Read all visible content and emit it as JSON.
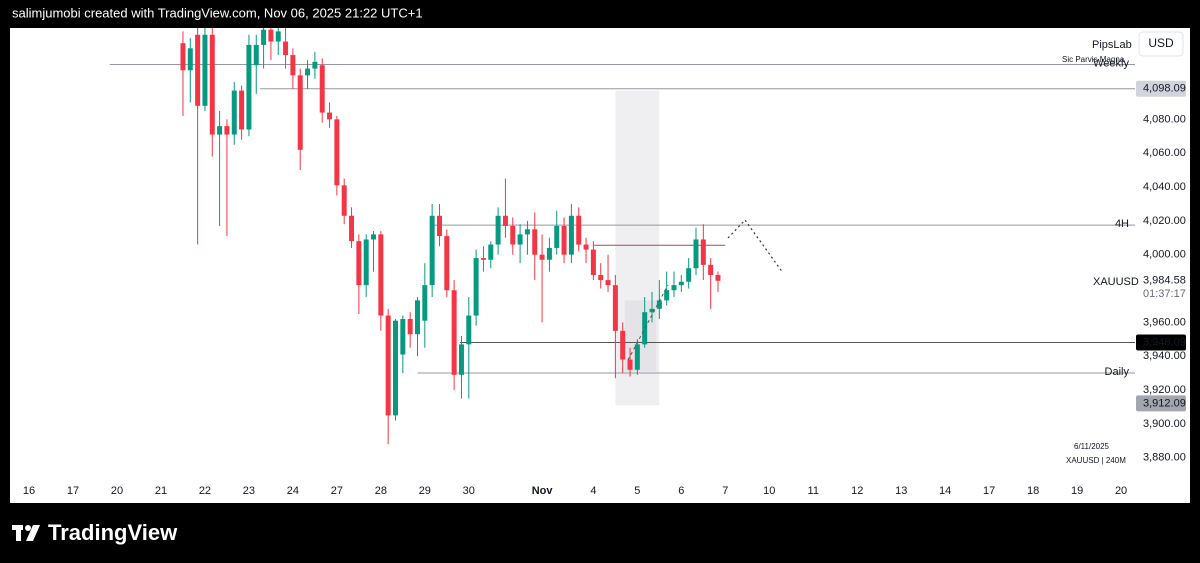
{
  "header": "salimjumobi created with TradingView.com, Nov 06, 2025 21:22 UTC+1",
  "brand": "TradingView",
  "chart_data": {
    "type": "candlestick",
    "symbol": "XAUUSD",
    "countdown": "01:37:17",
    "currency": "USD",
    "watermark": {
      "title": "PipsLab",
      "subtitle": "Sic Parvis Magna"
    },
    "footnote": [
      "6/11/2025",
      "XAUUSD | 240M"
    ],
    "up_color": "#089981",
    "down_color": "#f23645",
    "open": [
      4125,
      4109,
      4130,
      4088,
      4130,
      4071,
      4076,
      4071,
      4097,
      4074,
      4112,
      4124,
      4133,
      4126,
      4126,
      4118,
      4106,
      4106,
      4110,
      4112,
      4084,
      4080,
      4041,
      4023,
      4008,
      3982,
      4009,
      4012,
      3964,
      3905,
      3941,
      3962,
      3953,
      3961,
      3982,
      4023,
      4011,
      3979,
      3929,
      3947,
      3964,
      3998,
      3997,
      4006,
      4023,
      4017,
      4006,
      4012,
      4015,
      4000,
      3997,
      4004,
      4017,
      4000,
      4023,
      4006,
      4003,
      3988,
      3985,
      3982,
      3955,
      3938,
      3932,
      3947,
      3966,
      3968,
      3973,
      3979,
      3982,
      3984,
      3992,
      4009,
      3994,
      3988
    ],
    "high": [
      4132,
      4128,
      4134,
      4134,
      4134,
      4085,
      4080,
      4102,
      4100,
      4130,
      4130,
      4134,
      4134,
      4134,
      4134,
      4122,
      4110,
      4115,
      4120,
      4116,
      4090,
      4082,
      4045,
      4028,
      4012,
      4012,
      4014,
      4014,
      3968,
      3962,
      3964,
      3966,
      3975,
      3995,
      4030,
      4030,
      4015,
      3985,
      3952,
      3975,
      4003,
      4005,
      4008,
      4028,
      4045,
      4022,
      4018,
      4020,
      4025,
      4012,
      4010,
      4026,
      4022,
      4030,
      4028,
      4010,
      4008,
      3995,
      4000,
      3988,
      3960,
      3945,
      3950,
      3975,
      3978,
      3985,
      3990,
      3990,
      3988,
      3998,
      4016,
      4018,
      3998,
      3990
    ],
    "low": [
      4082,
      4090,
      4006,
      4085,
      4058,
      4017,
      4011,
      4065,
      4068,
      4070,
      4095,
      4110,
      4115,
      4118,
      4110,
      4098,
      4050,
      4098,
      4104,
      4078,
      4075,
      4035,
      4018,
      4004,
      3965,
      3975,
      3990,
      3955,
      3888,
      3902,
      3930,
      3945,
      3940,
      3945,
      3975,
      4005,
      3975,
      3920,
      3915,
      3915,
      3958,
      3990,
      3992,
      4000,
      4010,
      4000,
      3995,
      4000,
      3985,
      3960,
      3990,
      4000,
      3995,
      3995,
      4002,
      3995,
      3985,
      3980,
      3978,
      3927,
      3930,
      3928,
      3929,
      3945,
      3960,
      3962,
      3970,
      3975,
      3978,
      3980,
      3988,
      3985,
      3968,
      3978
    ],
    "close": [
      4109,
      4122,
      4088,
      4130,
      4071,
      4076,
      4071,
      4097,
      4074,
      4124,
      4124,
      4133,
      4126,
      4132,
      4118,
      4106,
      4062,
      4110,
      4114,
      4084,
      4080,
      4041,
      4023,
      4008,
      3982,
      4009,
      4012,
      3964,
      3905,
      3961,
      3962,
      3953,
      3973,
      3982,
      4023,
      4011,
      3979,
      3929,
      3947,
      3964,
      3998,
      3997,
      4006,
      4023,
      4017,
      4006,
      4012,
      4015,
      4000,
      3997,
      4004,
      4017,
      4000,
      4023,
      4006,
      4003,
      3988,
      3985,
      3982,
      3955,
      3938,
      3932,
      3947,
      3966,
      3968,
      3973,
      3979,
      3982,
      3984,
      3992,
      4009,
      3994,
      3988,
      3984.58
    ],
    "close_labels_last": "3,984.58",
    "xlim": [
      -23.6,
      129.9
    ],
    "xticks": [
      {
        "value": -21,
        "label": "16"
      },
      {
        "value": -15,
        "label": "17"
      },
      {
        "value": -9,
        "label": "20"
      },
      {
        "value": -3,
        "label": "21"
      },
      {
        "value": 3,
        "label": "22"
      },
      {
        "value": 9,
        "label": "23"
      },
      {
        "value": 15,
        "label": "24"
      },
      {
        "value": 21,
        "label": "27"
      },
      {
        "value": 27,
        "label": "28"
      },
      {
        "value": 33,
        "label": "29"
      },
      {
        "value": 39,
        "label": "30"
      },
      {
        "value": 49,
        "label": "Nov"
      },
      {
        "value": 56,
        "label": "4"
      },
      {
        "value": 62,
        "label": "5"
      },
      {
        "value": 68,
        "label": "6"
      },
      {
        "value": 74,
        "label": "7"
      },
      {
        "value": 80,
        "label": "10"
      },
      {
        "value": 86,
        "label": "11"
      },
      {
        "value": 92,
        "label": "12"
      },
      {
        "value": 98,
        "label": "13"
      },
      {
        "value": 104,
        "label": "14"
      },
      {
        "value": 110,
        "label": "17"
      },
      {
        "value": 116,
        "label": "18"
      },
      {
        "value": 122,
        "label": "19"
      },
      {
        "value": 128,
        "label": "20"
      }
    ],
    "ylim": [
      3868,
      4134
    ],
    "yticks": [
      {
        "value": 3880,
        "label": "3,880.00"
      },
      {
        "value": 3900,
        "label": "3,900.00"
      },
      {
        "value": 3920,
        "label": "3,920.00"
      },
      {
        "value": 3940,
        "label": "3,940.00"
      },
      {
        "value": 3960,
        "label": "3,960.00"
      },
      {
        "value": 4000,
        "label": "4,000.00"
      },
      {
        "value": 4020,
        "label": "4,020.00"
      },
      {
        "value": 4040,
        "label": "4,040.00"
      },
      {
        "value": 4060,
        "label": "4,060.00"
      },
      {
        "value": 4080,
        "label": "4,080.00"
      }
    ],
    "levels": [
      {
        "name": "Weekly",
        "value": 4112.4,
        "start": -10,
        "color": "#9598a1"
      },
      {
        "value": 4098.09,
        "label": "4,098.09",
        "start": 10.5,
        "color": "#9598a1",
        "box": "#d1d4dc",
        "text_color": "#131722"
      },
      {
        "name": "4H",
        "value": 4017.5,
        "start": 33.7,
        "color": "#9598a1"
      },
      {
        "value": 3948.09,
        "label": "3,948.09",
        "start": 37.8,
        "color": "#555",
        "box": "#000000",
        "text_color": "#ffffff"
      },
      {
        "name": "Daily",
        "value": 3930.1,
        "start": 32,
        "color": "#9598a1"
      },
      {
        "value": 4005.6,
        "start": 56,
        "end": 74,
        "color": "#a0524a"
      }
    ],
    "price_labels": [
      {
        "value": 3912.09,
        "label": "3,912.09",
        "box": "#a3a6af",
        "text_color": "#131722"
      }
    ],
    "zones": [
      {
        "start": 59,
        "end": 65,
        "top": 4097,
        "bottom": 3911,
        "color": "#efeff2"
      },
      {
        "start": 60.3,
        "end": 64.6,
        "top": 3973,
        "bottom": 3931,
        "color": "#e3e3e8"
      }
    ]
  }
}
